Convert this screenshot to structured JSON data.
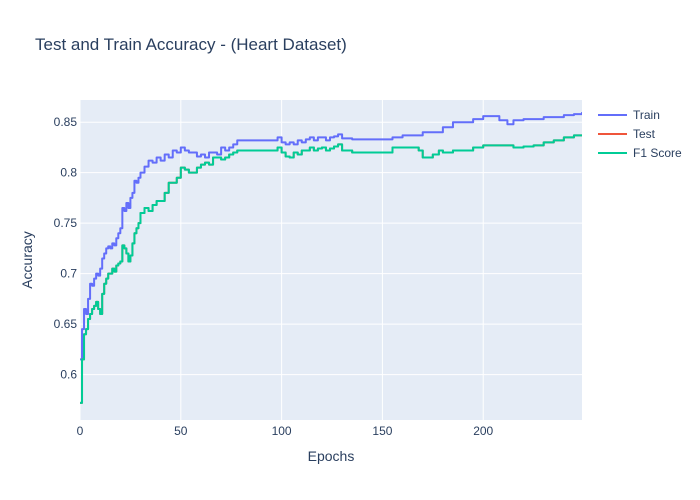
{
  "chart_data": {
    "type": "line",
    "title": "Test and Train Accuracy - (Heart Dataset)",
    "xlabel": "Epochs",
    "ylabel": "Accuracy",
    "xlim": [
      0,
      249
    ],
    "ylim": [
      0.555,
      0.872
    ],
    "x_ticks": [
      0,
      50,
      100,
      150,
      200
    ],
    "y_ticks": [
      0.6,
      0.65,
      0.7,
      0.75,
      0.8,
      0.85
    ],
    "x_tick_labels": [
      "0",
      "50",
      "100",
      "150",
      "200"
    ],
    "y_tick_labels": [
      "0.6",
      "0.65",
      "0.7",
      "0.75",
      "0.8",
      "0.85"
    ],
    "grid": true,
    "legend_position": "top-right",
    "background": "#e5ecf6",
    "series": [
      {
        "name": "Train",
        "color": "#636efa",
        "points": [
          [
            0,
            0.615
          ],
          [
            1,
            0.645
          ],
          [
            2,
            0.665
          ],
          [
            3,
            0.66
          ],
          [
            4,
            0.675
          ],
          [
            5,
            0.69
          ],
          [
            6,
            0.688
          ],
          [
            7,
            0.695
          ],
          [
            8,
            0.7
          ],
          [
            9,
            0.698
          ],
          [
            10,
            0.705
          ],
          [
            11,
            0.715
          ],
          [
            12,
            0.72
          ],
          [
            13,
            0.725
          ],
          [
            14,
            0.727
          ],
          [
            15,
            0.725
          ],
          [
            16,
            0.73
          ],
          [
            17,
            0.728
          ],
          [
            18,
            0.735
          ],
          [
            19,
            0.74
          ],
          [
            20,
            0.745
          ],
          [
            21,
            0.765
          ],
          [
            22,
            0.762
          ],
          [
            23,
            0.77
          ],
          [
            24,
            0.765
          ],
          [
            25,
            0.775
          ],
          [
            26,
            0.78
          ],
          [
            27,
            0.792
          ],
          [
            28,
            0.79
          ],
          [
            29,
            0.795
          ],
          [
            30,
            0.8
          ],
          [
            32,
            0.806
          ],
          [
            34,
            0.812
          ],
          [
            36,
            0.81
          ],
          [
            38,
            0.815
          ],
          [
            40,
            0.812
          ],
          [
            42,
            0.818
          ],
          [
            44,
            0.815
          ],
          [
            46,
            0.822
          ],
          [
            48,
            0.82
          ],
          [
            50,
            0.825
          ],
          [
            52,
            0.822
          ],
          [
            54,
            0.82
          ],
          [
            56,
            0.82
          ],
          [
            58,
            0.816
          ],
          [
            60,
            0.818
          ],
          [
            62,
            0.815
          ],
          [
            64,
            0.82
          ],
          [
            66,
            0.82
          ],
          [
            68,
            0.818
          ],
          [
            70,
            0.825
          ],
          [
            72,
            0.822
          ],
          [
            74,
            0.825
          ],
          [
            76,
            0.828
          ],
          [
            78,
            0.832
          ],
          [
            80,
            0.832
          ],
          [
            85,
            0.832
          ],
          [
            90,
            0.832
          ],
          [
            95,
            0.832
          ],
          [
            98,
            0.835
          ],
          [
            100,
            0.83
          ],
          [
            102,
            0.828
          ],
          [
            104,
            0.83
          ],
          [
            106,
            0.828
          ],
          [
            108,
            0.832
          ],
          [
            110,
            0.83
          ],
          [
            112,
            0.833
          ],
          [
            114,
            0.835
          ],
          [
            116,
            0.832
          ],
          [
            118,
            0.835
          ],
          [
            120,
            0.835
          ],
          [
            122,
            0.832
          ],
          [
            124,
            0.835
          ],
          [
            126,
            0.836
          ],
          [
            128,
            0.838
          ],
          [
            130,
            0.834
          ],
          [
            135,
            0.833
          ],
          [
            140,
            0.833
          ],
          [
            145,
            0.833
          ],
          [
            150,
            0.833
          ],
          [
            155,
            0.835
          ],
          [
            160,
            0.837
          ],
          [
            165,
            0.837
          ],
          [
            170,
            0.84
          ],
          [
            175,
            0.84
          ],
          [
            180,
            0.845
          ],
          [
            185,
            0.85
          ],
          [
            190,
            0.85
          ],
          [
            195,
            0.853
          ],
          [
            200,
            0.856
          ],
          [
            205,
            0.856
          ],
          [
            208,
            0.852
          ],
          [
            210,
            0.852
          ],
          [
            212,
            0.848
          ],
          [
            215,
            0.852
          ],
          [
            220,
            0.853
          ],
          [
            225,
            0.853
          ],
          [
            230,
            0.855
          ],
          [
            235,
            0.855
          ],
          [
            240,
            0.857
          ],
          [
            245,
            0.858
          ],
          [
            249,
            0.86
          ]
        ]
      },
      {
        "name": "Test",
        "color": "#ef553b",
        "points": [
          [
            0,
            0.572
          ],
          [
            1,
            0.615
          ],
          [
            2,
            0.64
          ],
          [
            3,
            0.645
          ],
          [
            4,
            0.655
          ],
          [
            5,
            0.66
          ],
          [
            6,
            0.665
          ],
          [
            7,
            0.668
          ],
          [
            8,
            0.672
          ],
          [
            9,
            0.665
          ],
          [
            10,
            0.66
          ],
          [
            11,
            0.68
          ],
          [
            12,
            0.69
          ],
          [
            13,
            0.695
          ],
          [
            14,
            0.7
          ],
          [
            15,
            0.7
          ],
          [
            16,
            0.705
          ],
          [
            17,
            0.702
          ],
          [
            18,
            0.708
          ],
          [
            19,
            0.71
          ],
          [
            20,
            0.712
          ],
          [
            21,
            0.728
          ],
          [
            22,
            0.725
          ],
          [
            23,
            0.72
          ],
          [
            24,
            0.712
          ],
          [
            25,
            0.718
          ],
          [
            26,
            0.73
          ],
          [
            27,
            0.74
          ],
          [
            28,
            0.745
          ],
          [
            29,
            0.75
          ],
          [
            30,
            0.76
          ],
          [
            32,
            0.765
          ],
          [
            34,
            0.762
          ],
          [
            36,
            0.768
          ],
          [
            38,
            0.772
          ],
          [
            40,
            0.772
          ],
          [
            42,
            0.78
          ],
          [
            44,
            0.79
          ],
          [
            46,
            0.79
          ],
          [
            48,
            0.795
          ],
          [
            50,
            0.805
          ],
          [
            52,
            0.803
          ],
          [
            54,
            0.8
          ],
          [
            56,
            0.8
          ],
          [
            58,
            0.805
          ],
          [
            60,
            0.808
          ],
          [
            62,
            0.81
          ],
          [
            64,
            0.808
          ],
          [
            66,
            0.815
          ],
          [
            68,
            0.815
          ],
          [
            70,
            0.813
          ],
          [
            72,
            0.815
          ],
          [
            74,
            0.818
          ],
          [
            76,
            0.82
          ],
          [
            78,
            0.822
          ],
          [
            80,
            0.822
          ],
          [
            85,
            0.822
          ],
          [
            90,
            0.822
          ],
          [
            95,
            0.822
          ],
          [
            98,
            0.825
          ],
          [
            100,
            0.82
          ],
          [
            102,
            0.816
          ],
          [
            104,
            0.815
          ],
          [
            106,
            0.82
          ],
          [
            108,
            0.818
          ],
          [
            110,
            0.822
          ],
          [
            112,
            0.822
          ],
          [
            114,
            0.825
          ],
          [
            116,
            0.822
          ],
          [
            118,
            0.824
          ],
          [
            120,
            0.825
          ],
          [
            122,
            0.822
          ],
          [
            124,
            0.824
          ],
          [
            126,
            0.826
          ],
          [
            128,
            0.828
          ],
          [
            130,
            0.822
          ],
          [
            135,
            0.82
          ],
          [
            140,
            0.82
          ],
          [
            145,
            0.82
          ],
          [
            150,
            0.82
          ],
          [
            155,
            0.825
          ],
          [
            160,
            0.825
          ],
          [
            165,
            0.825
          ],
          [
            168,
            0.822
          ],
          [
            170,
            0.815
          ],
          [
            175,
            0.818
          ],
          [
            178,
            0.822
          ],
          [
            180,
            0.82
          ],
          [
            185,
            0.822
          ],
          [
            190,
            0.822
          ],
          [
            195,
            0.825
          ],
          [
            200,
            0.827
          ],
          [
            205,
            0.827
          ],
          [
            210,
            0.827
          ],
          [
            215,
            0.825
          ],
          [
            220,
            0.826
          ],
          [
            225,
            0.827
          ],
          [
            230,
            0.83
          ],
          [
            235,
            0.832
          ],
          [
            240,
            0.835
          ],
          [
            245,
            0.837
          ],
          [
            249,
            0.837
          ]
        ]
      },
      {
        "name": "F1 Score",
        "color": "#00cc96",
        "points": [
          [
            0,
            0.572
          ],
          [
            1,
            0.615
          ],
          [
            2,
            0.64
          ],
          [
            3,
            0.645
          ],
          [
            4,
            0.655
          ],
          [
            5,
            0.66
          ],
          [
            6,
            0.665
          ],
          [
            7,
            0.668
          ],
          [
            8,
            0.672
          ],
          [
            9,
            0.665
          ],
          [
            10,
            0.66
          ],
          [
            11,
            0.68
          ],
          [
            12,
            0.69
          ],
          [
            13,
            0.695
          ],
          [
            14,
            0.7
          ],
          [
            15,
            0.7
          ],
          [
            16,
            0.705
          ],
          [
            17,
            0.702
          ],
          [
            18,
            0.708
          ],
          [
            19,
            0.71
          ],
          [
            20,
            0.712
          ],
          [
            21,
            0.728
          ],
          [
            22,
            0.725
          ],
          [
            23,
            0.72
          ],
          [
            24,
            0.712
          ],
          [
            25,
            0.718
          ],
          [
            26,
            0.73
          ],
          [
            27,
            0.74
          ],
          [
            28,
            0.745
          ],
          [
            29,
            0.75
          ],
          [
            30,
            0.76
          ],
          [
            32,
            0.765
          ],
          [
            34,
            0.762
          ],
          [
            36,
            0.768
          ],
          [
            38,
            0.772
          ],
          [
            40,
            0.772
          ],
          [
            42,
            0.78
          ],
          [
            44,
            0.79
          ],
          [
            46,
            0.79
          ],
          [
            48,
            0.795
          ],
          [
            50,
            0.805
          ],
          [
            52,
            0.803
          ],
          [
            54,
            0.8
          ],
          [
            56,
            0.8
          ],
          [
            58,
            0.805
          ],
          [
            60,
            0.808
          ],
          [
            62,
            0.81
          ],
          [
            64,
            0.808
          ],
          [
            66,
            0.815
          ],
          [
            68,
            0.815
          ],
          [
            70,
            0.813
          ],
          [
            72,
            0.815
          ],
          [
            74,
            0.818
          ],
          [
            76,
            0.82
          ],
          [
            78,
            0.822
          ],
          [
            80,
            0.822
          ],
          [
            85,
            0.822
          ],
          [
            90,
            0.822
          ],
          [
            95,
            0.822
          ],
          [
            98,
            0.825
          ],
          [
            100,
            0.82
          ],
          [
            102,
            0.816
          ],
          [
            104,
            0.815
          ],
          [
            106,
            0.82
          ],
          [
            108,
            0.818
          ],
          [
            110,
            0.822
          ],
          [
            112,
            0.822
          ],
          [
            114,
            0.825
          ],
          [
            116,
            0.822
          ],
          [
            118,
            0.824
          ],
          [
            120,
            0.825
          ],
          [
            122,
            0.822
          ],
          [
            124,
            0.824
          ],
          [
            126,
            0.826
          ],
          [
            128,
            0.828
          ],
          [
            130,
            0.822
          ],
          [
            135,
            0.82
          ],
          [
            140,
            0.82
          ],
          [
            145,
            0.82
          ],
          [
            150,
            0.82
          ],
          [
            155,
            0.825
          ],
          [
            160,
            0.825
          ],
          [
            165,
            0.825
          ],
          [
            168,
            0.822
          ],
          [
            170,
            0.815
          ],
          [
            175,
            0.818
          ],
          [
            178,
            0.822
          ],
          [
            180,
            0.82
          ],
          [
            185,
            0.822
          ],
          [
            190,
            0.822
          ],
          [
            195,
            0.825
          ],
          [
            200,
            0.827
          ],
          [
            205,
            0.827
          ],
          [
            210,
            0.827
          ],
          [
            215,
            0.825
          ],
          [
            220,
            0.826
          ],
          [
            225,
            0.827
          ],
          [
            230,
            0.83
          ],
          [
            235,
            0.832
          ],
          [
            240,
            0.835
          ],
          [
            245,
            0.837
          ],
          [
            249,
            0.837
          ]
        ]
      }
    ]
  }
}
